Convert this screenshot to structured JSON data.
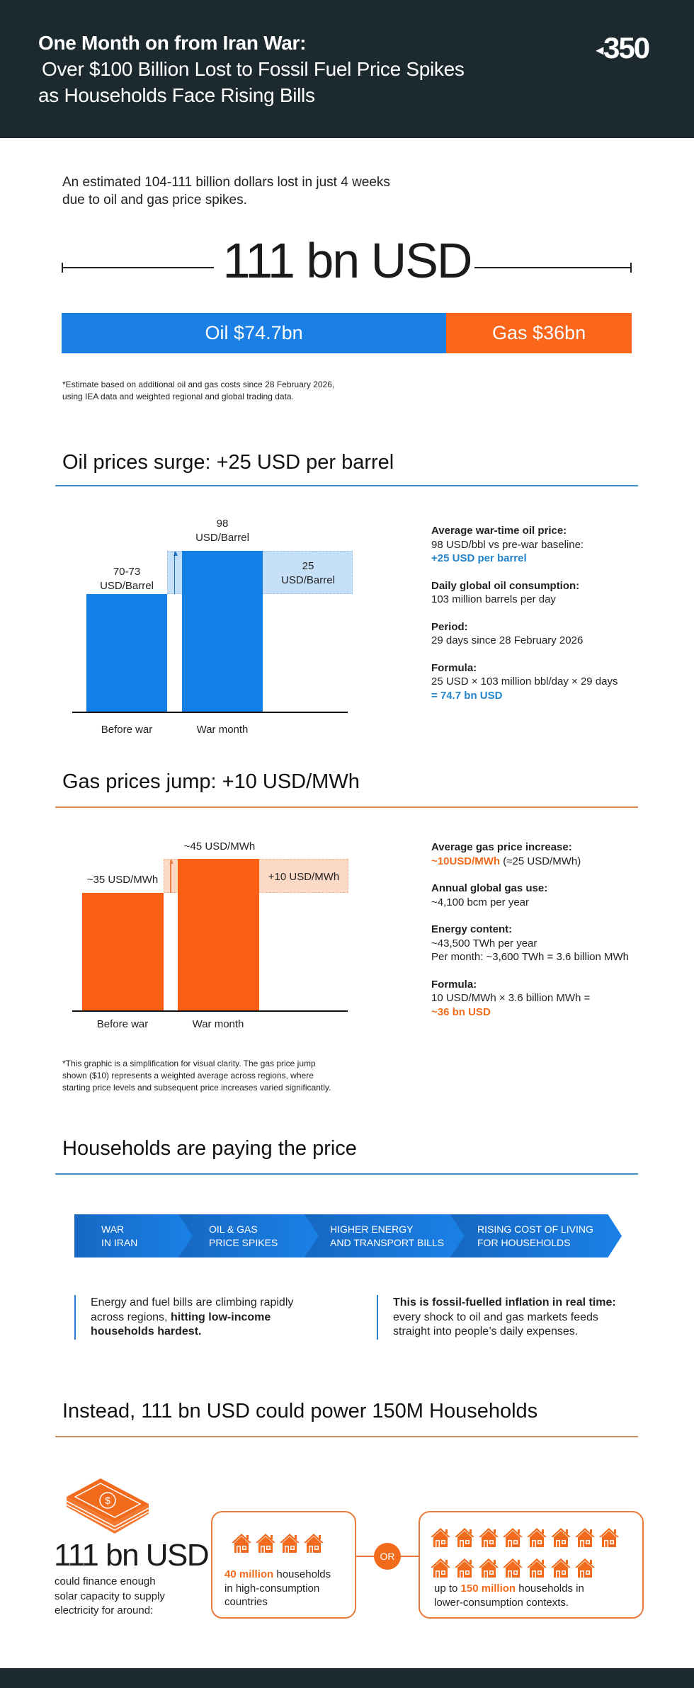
{
  "header": {
    "title_line1": "One Month on from Iran War:",
    "title_line2": "Over $100 Billion Lost to Fossil Fuel Price Spikes",
    "title_line3": "as Households Face Rising Bills",
    "logo": "350"
  },
  "intro": {
    "line1": "An estimated 104-111 billion dollars lost in just 4 weeks",
    "line2": "due to oil and gas price spikes."
  },
  "total": "111 bn USD",
  "split": {
    "oil_label": "Oil $74.7bn",
    "oil_value": 74.7,
    "gas_label": "Gas $36bn",
    "gas_value": 36,
    "oil_color": "#1a80e6",
    "gas_color": "#fb661b"
  },
  "estimate_note": {
    "line1": "*Estimate based on additional oil and gas costs since 28 February 2026,",
    "line2": "using IEA data and weighted regional and global trading data."
  },
  "oil": {
    "heading": "Oil prices surge: +25 USD per barrel",
    "war_value_label": "98",
    "war_unit": "USD/Barrel",
    "before_value_label": "70-73",
    "before_unit": "USD/Barrel",
    "delta_value_label": "25",
    "delta_unit": "USD/Barrel",
    "cat_before": "Before war",
    "cat_war": "War month",
    "info": {
      "t1": "Average war-time oil price:",
      "t1a": "98 USD/bbl vs pre-war baseline:",
      "t1b": "+25 USD per barrel",
      "t2": "Daily global oil consumption:",
      "t2a": "103 million barrels per day",
      "t3": "Period:",
      "t3a": "29 days since 28 February 2026",
      "t4": "Formula:",
      "t4a": "25 USD × 103 million bbl/day × 29 days",
      "t4b": "= 74.7 bn USD"
    }
  },
  "gas": {
    "heading": "Gas prices jump: +10 USD/MWh",
    "war_label": "~45 USD/MWh",
    "before_label": "~35 USD/MWh",
    "delta_label": "+10 USD/MWh",
    "cat_before": "Before war",
    "cat_war": "War month",
    "info": {
      "t1": "Average gas price increase:",
      "t1a": "~10USD/MWh",
      "t1b": "(≈25 USD/MWh)",
      "t2": "Annual global gas use:",
      "t2a": "~4,100 bcm per year",
      "t3": "Energy content:",
      "t3a": "~43,500 TWh per year",
      "t3b": "Per month: ~3,600 TWh = 3.6 billion MWh",
      "t4": "Formula:",
      "t4a": "10 USD/MWh × 3.6 billion MWh =",
      "t4b": "~36 bn USD"
    },
    "note": {
      "line1": "*This graphic is a simplification for visual clarity. The gas price jump",
      "line2": "shown ($10) represents a weighted average across regions, where",
      "line3": "starting price levels and subsequent price increases varied significantly."
    }
  },
  "chart_data": [
    {
      "type": "bar",
      "title": "Oil prices surge: +25 USD per barrel",
      "categories": [
        "Before war",
        "War month"
      ],
      "values": [
        71.5,
        98
      ],
      "ylabel": "USD/Barrel",
      "ylim": [
        0,
        98
      ],
      "increase": 25
    },
    {
      "type": "bar",
      "title": "Gas prices jump: +10 USD/MWh",
      "categories": [
        "Before war",
        "War month"
      ],
      "values": [
        35,
        45
      ],
      "ylabel": "USD/MWh",
      "ylim": [
        0,
        45
      ],
      "increase": 10
    }
  ],
  "households": {
    "heading": "Households are paying the price",
    "steps": [
      {
        "l1": "War",
        "l2": "in Iran"
      },
      {
        "l1": "Oil & Gas",
        "l2": "price spikes"
      },
      {
        "l1": "Higher energy",
        "l2": "and transport bills"
      },
      {
        "l1": "Rising cost of living",
        "l2": "for households"
      }
    ],
    "left_a": "Energy and fuel bills are climbing rapidly",
    "left_b": "across regions, ",
    "left_bold1": "hitting low-income",
    "left_bold2": "households hardest.",
    "right_bold": "This is fossil-fuelled inflation in real time:",
    "right_a": "every shock to oil and gas markets feeds",
    "right_b": "straight into people’s daily expenses."
  },
  "instead": {
    "heading": "Instead, 111 bn USD could power 150M Households",
    "amount": "111 bn USD",
    "sub1": "could finance enough",
    "sub2": "solar capacity to supply",
    "sub3": "electricity for around:",
    "or": "OR",
    "box1_highlight": "40 million",
    "box1_a": " households",
    "box1_b": "in high-consumption",
    "box1_c": "countries",
    "box1_houses": 4,
    "box2_pre": "up to ",
    "box2_highlight": "150 million",
    "box2_a": " households in",
    "box2_b": "lower-consumption contexts.",
    "box2_houses": 15
  }
}
